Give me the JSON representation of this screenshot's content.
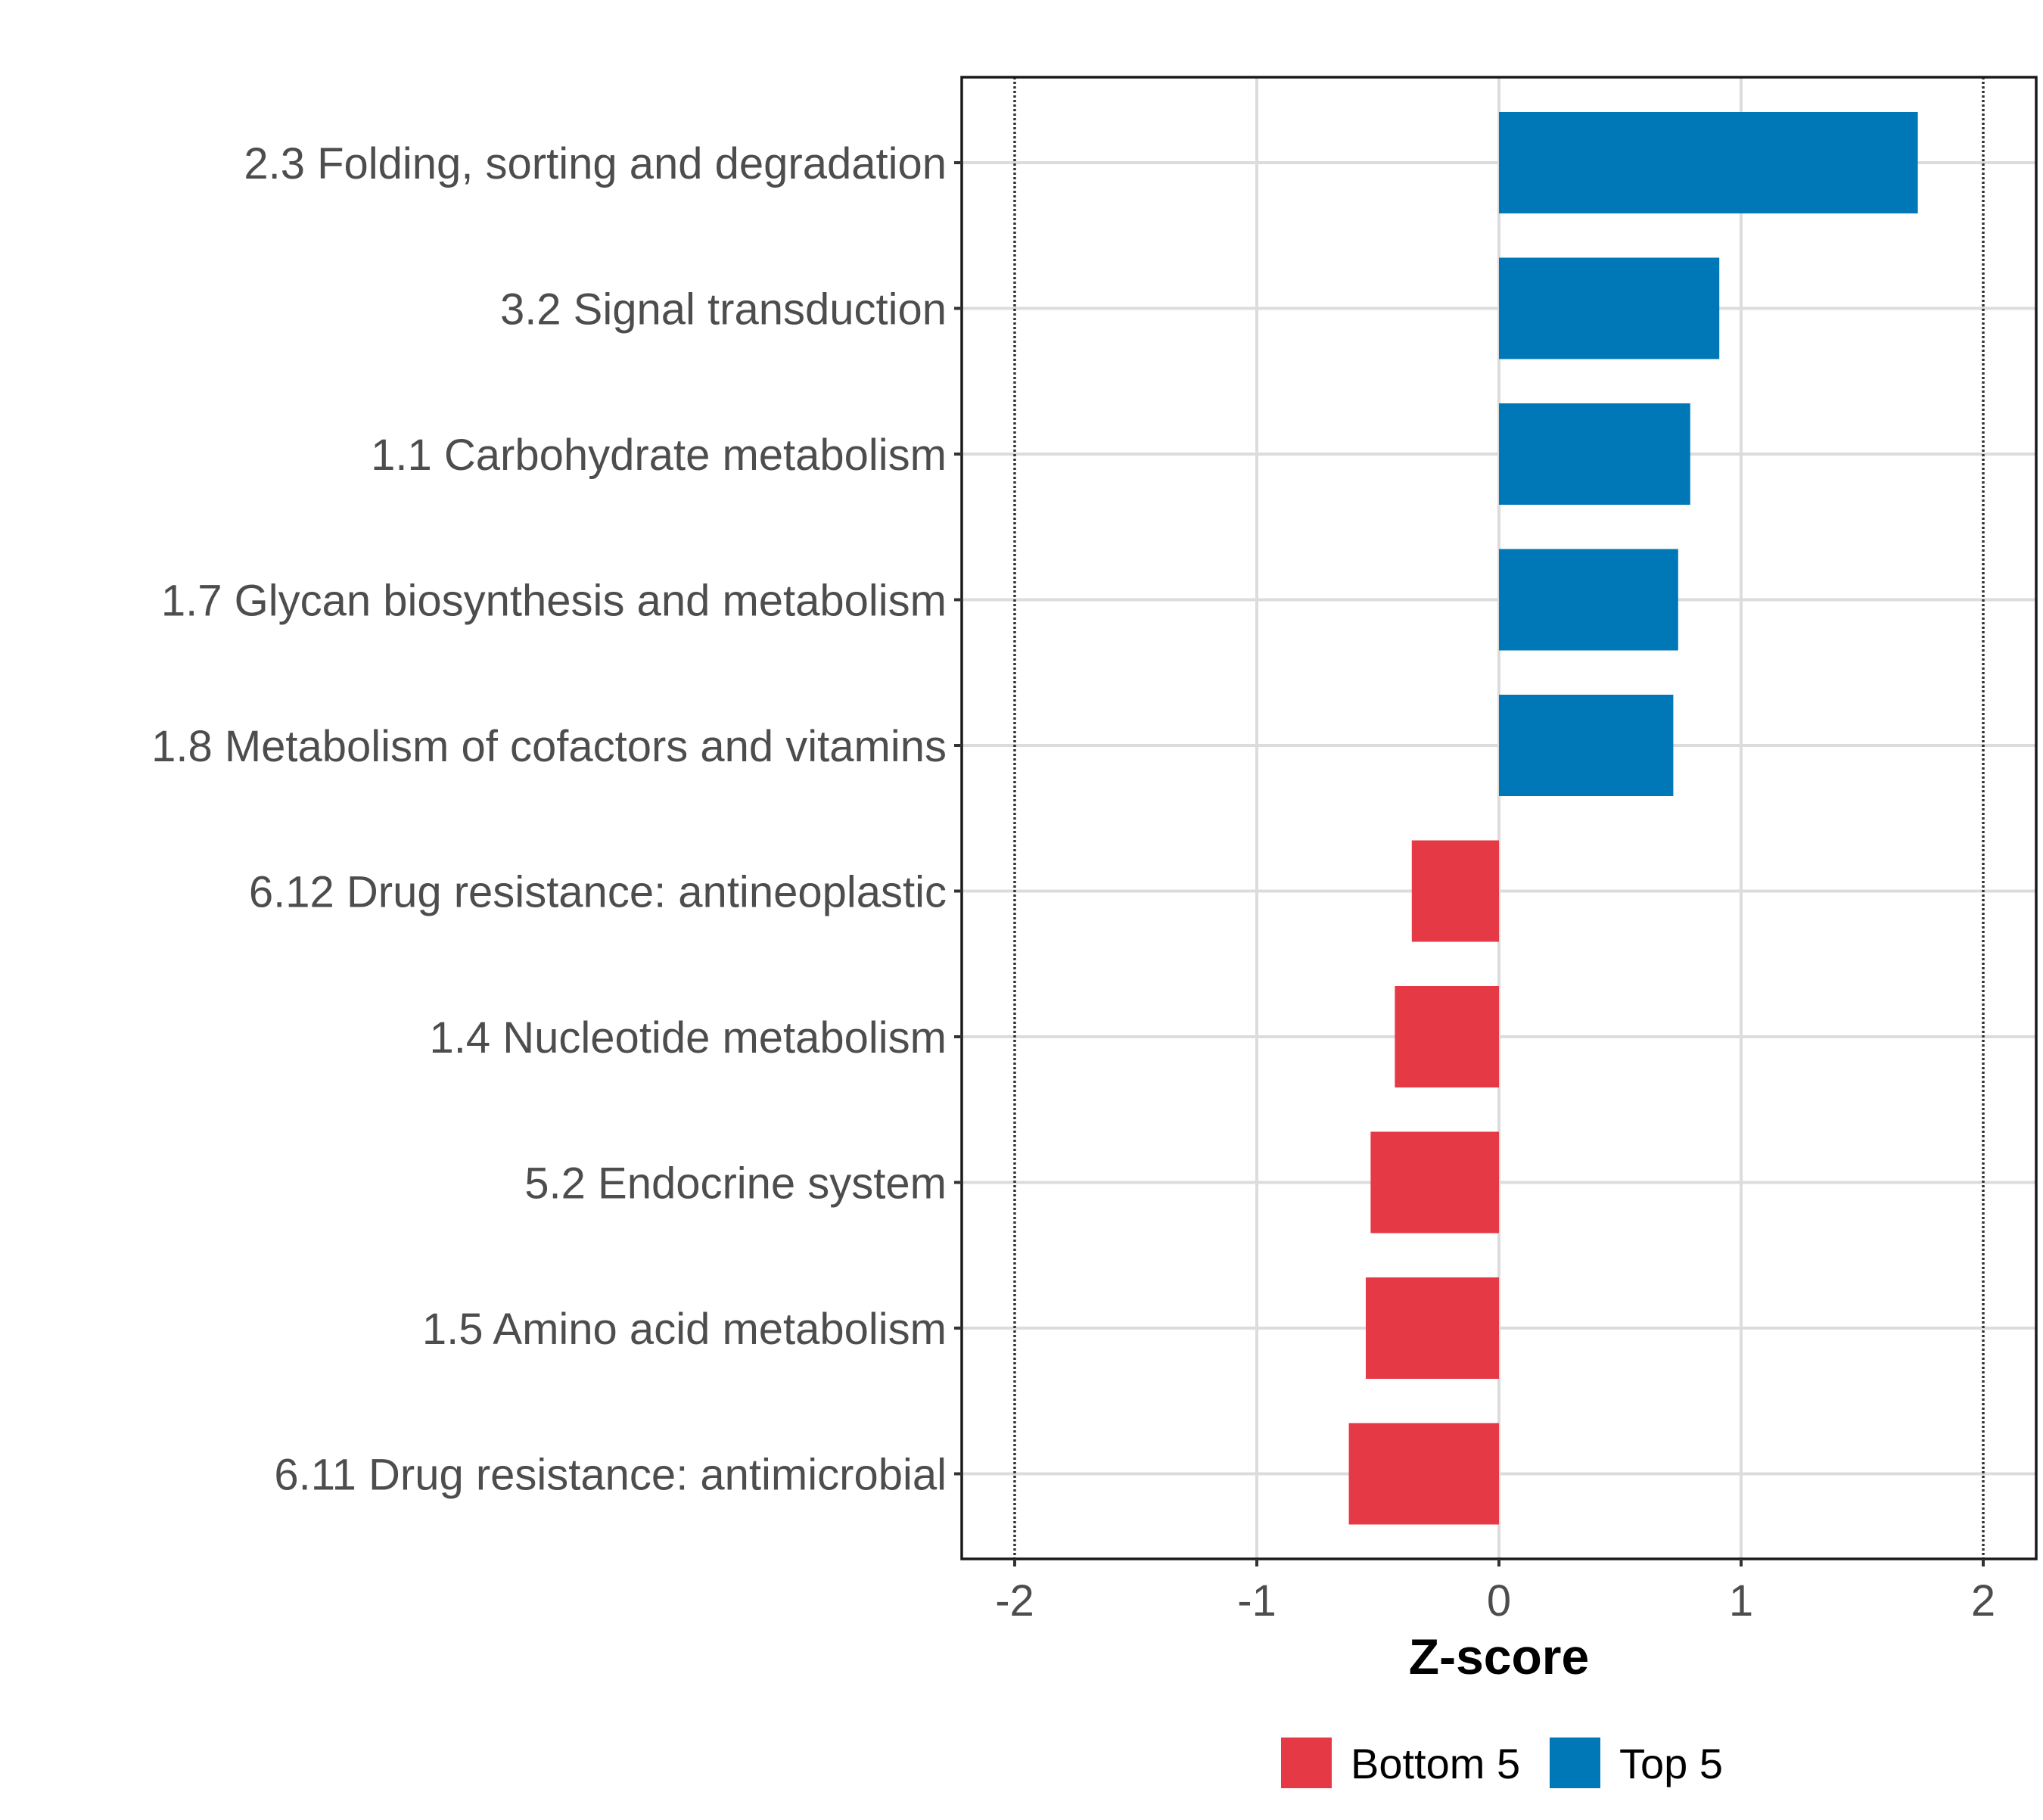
{
  "chart_data": {
    "type": "bar",
    "orientation": "horizontal",
    "title": "",
    "xlabel": "Z-score",
    "ylabel": "",
    "xlim": [
      -2.22,
      2.22
    ],
    "xticks": [
      -2,
      -1,
      0,
      1,
      2
    ],
    "xtick_labels": [
      "-2",
      "-1",
      "0",
      "1",
      "2"
    ],
    "grid": true,
    "reference_lines": [
      -2,
      2
    ],
    "categories": [
      "2.3 Folding, sorting and degradation",
      "3.2 Signal transduction",
      "1.1 Carbohydrate metabolism",
      "1.7 Glycan biosynthesis and metabolism",
      "1.8 Metabolism of cofactors and vitamins",
      "6.12 Drug resistance: antineoplastic",
      "1.4 Nucleotide metabolism",
      "5.2 Endocrine system",
      "1.5 Amino acid metabolism",
      "6.11 Drug resistance: antimicrobial"
    ],
    "values": [
      1.73,
      0.91,
      0.79,
      0.74,
      0.72,
      -0.36,
      -0.43,
      -0.53,
      -0.55,
      -0.62
    ],
    "groups": [
      "Top 5",
      "Top 5",
      "Top 5",
      "Top 5",
      "Top 5",
      "Bottom 5",
      "Bottom 5",
      "Bottom 5",
      "Bottom 5",
      "Bottom 5"
    ],
    "legend": {
      "position": "bottom",
      "entries": [
        {
          "label": "Bottom 5",
          "color": "#E63946"
        },
        {
          "label": "Top 5",
          "color": "#0077B6"
        }
      ]
    }
  }
}
